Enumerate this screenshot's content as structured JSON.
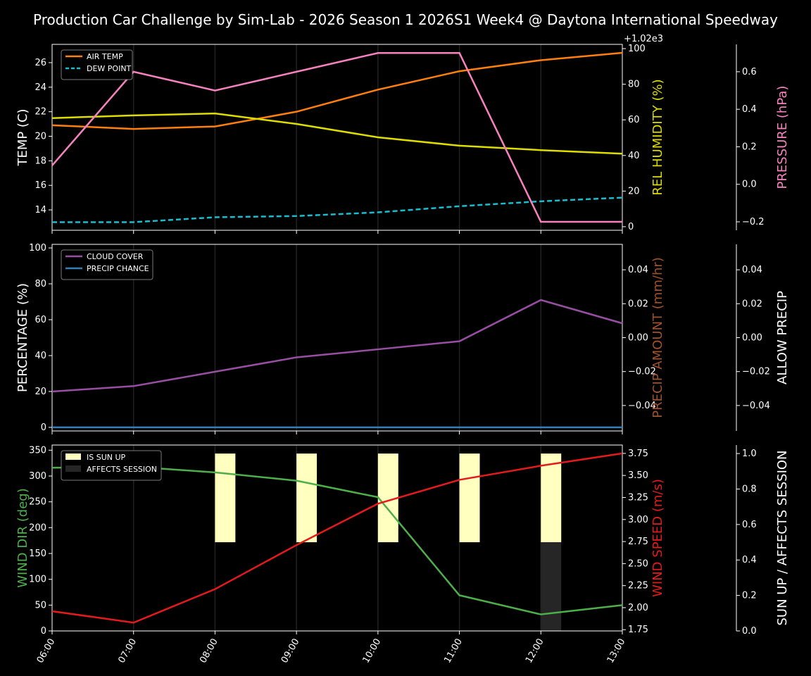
{
  "title": "Production Car Challenge by Sim-Lab - 2026 Season 1 2026S1 Week4 @ Daytona International Speedway",
  "chart_data": [
    {
      "type": "line",
      "x": [
        "06:00",
        "07:00",
        "08:00",
        "09:00",
        "10:00",
        "11:00",
        "12:00",
        "13:00"
      ],
      "ylabel": "TEMP (C)",
      "ylabel_right": "REL HUMIDITY (%)",
      "ylabel_right2": "PRESSURE (hPa)",
      "right2_offset_label": "+1.02e3",
      "ylim": [
        12.34,
        27.49
      ],
      "ylim_right": [
        -2,
        102.4
      ],
      "ylim_right2": [
        1019.755,
        1020.746
      ],
      "yticks": [
        14,
        16,
        18,
        20,
        22,
        24,
        26
      ],
      "yticks_right": [
        0,
        20,
        40,
        60,
        80,
        100
      ],
      "yticks_right2": [
        "−0.2",
        "0.0",
        "0.2",
        "0.4",
        "0.6"
      ],
      "yticks_right2_values": [
        1019.8,
        1020.0,
        1020.2,
        1020.4,
        1020.6
      ],
      "legend": "top-left",
      "grid": "vertical",
      "series": [
        {
          "name": "AIR TEMP",
          "axis": "left",
          "color": "#ff7f0e",
          "style": "solid",
          "values": [
            20.9,
            20.6,
            20.8,
            22.0,
            23.8,
            25.3,
            26.2,
            26.8
          ]
        },
        {
          "name": "DEW POINT",
          "axis": "left",
          "color": "#17becf",
          "style": "dashed",
          "values": [
            13.0,
            13.0,
            13.4,
            13.5,
            13.8,
            14.3,
            14.7,
            15.0
          ]
        },
        {
          "axis": "right",
          "color": "#dddd00",
          "style": "solid",
          "values": [
            61,
            62.5,
            63.6,
            57.7,
            50.2,
            45.5,
            43,
            41
          ]
        },
        {
          "axis": "right2",
          "color": "#f781bf",
          "style": "solid",
          "values": [
            1020.1,
            1020.6,
            1020.5,
            1020.6,
            1020.7,
            1020.7,
            1019.8,
            1019.8
          ]
        }
      ]
    },
    {
      "type": "line",
      "x": [
        "06:00",
        "07:00",
        "08:00",
        "09:00",
        "10:00",
        "11:00",
        "12:00",
        "13:00"
      ],
      "ylabel": "PERCENTAGE (%)",
      "ylabel_right": "PRECIP AMOUNT (mm/hr)",
      "ylabel_right2": "ALLOW PRECIP",
      "ylim": [
        -2,
        102
      ],
      "ylim_right": [
        -0.055,
        0.055
      ],
      "ylim_right2": [
        -0.055,
        0.055
      ],
      "yticks": [
        0,
        20,
        40,
        60,
        80,
        100
      ],
      "yticks_right": [
        "−0.04",
        "−0.02",
        "0.00",
        "0.02",
        "0.04"
      ],
      "yticks_right_values": [
        -0.04,
        -0.02,
        0,
        0.02,
        0.04
      ],
      "yticks_right2": [
        "−0.04",
        "−0.02",
        "0.00",
        "0.02",
        "0.04"
      ],
      "legend": "top-left",
      "grid": "vertical",
      "series": [
        {
          "name": "CLOUD COVER",
          "axis": "left",
          "color": "#984ea3",
          "values": [
            20,
            23,
            31,
            39,
            43.5,
            48,
            71,
            58
          ]
        },
        {
          "name": "PRECIP CHANCE",
          "axis": "left",
          "color": "#377eb8",
          "values": [
            0,
            0,
            0,
            0,
            0,
            0,
            0,
            0
          ]
        }
      ]
    },
    {
      "type": "line",
      "x": [
        "06:00",
        "07:00",
        "08:00",
        "09:00",
        "10:00",
        "11:00",
        "12:00",
        "13:00"
      ],
      "ylabel": "WIND DIR (deg)",
      "ylabel_right": "WIND SPEED (m/s)",
      "ylabel_right2": "SUN UP / AFFECTS SESSION",
      "ylim": [
        0,
        360
      ],
      "ylim_right": [
        1.736,
        3.845
      ],
      "ylim_right2": [
        0,
        1.048
      ],
      "yticks": [
        0,
        50,
        100,
        150,
        200,
        250,
        300,
        350
      ],
      "yticks_right": [
        "1.75",
        "2.00",
        "2.25",
        "2.50",
        "2.75",
        "3.00",
        "3.25",
        "3.50",
        "3.75"
      ],
      "yticks_right2": [
        "0.0",
        "0.2",
        "0.4",
        "0.6",
        "0.8",
        "1.0"
      ],
      "legend": "top-left",
      "grid": "vertical",
      "series": [
        {
          "axis": "left",
          "color": "#4daf4a",
          "values": [
            316,
            318,
            307,
            291,
            259,
            69,
            32,
            50
          ]
        },
        {
          "axis": "right",
          "color": "#e41a1c",
          "values": [
            1.96,
            1.83,
            2.21,
            2.71,
            3.18,
            3.45,
            3.61,
            3.75
          ]
        }
      ],
      "bars": [
        {
          "name": "IS SUN UP",
          "color": "#ffffc0",
          "values": [
            0,
            0,
            1,
            1,
            1,
            1,
            1,
            0
          ]
        },
        {
          "name": "AFFECTS SESSION",
          "color": "#262626",
          "values": [
            0,
            0,
            0,
            0,
            0,
            0,
            1,
            0
          ]
        }
      ]
    }
  ]
}
